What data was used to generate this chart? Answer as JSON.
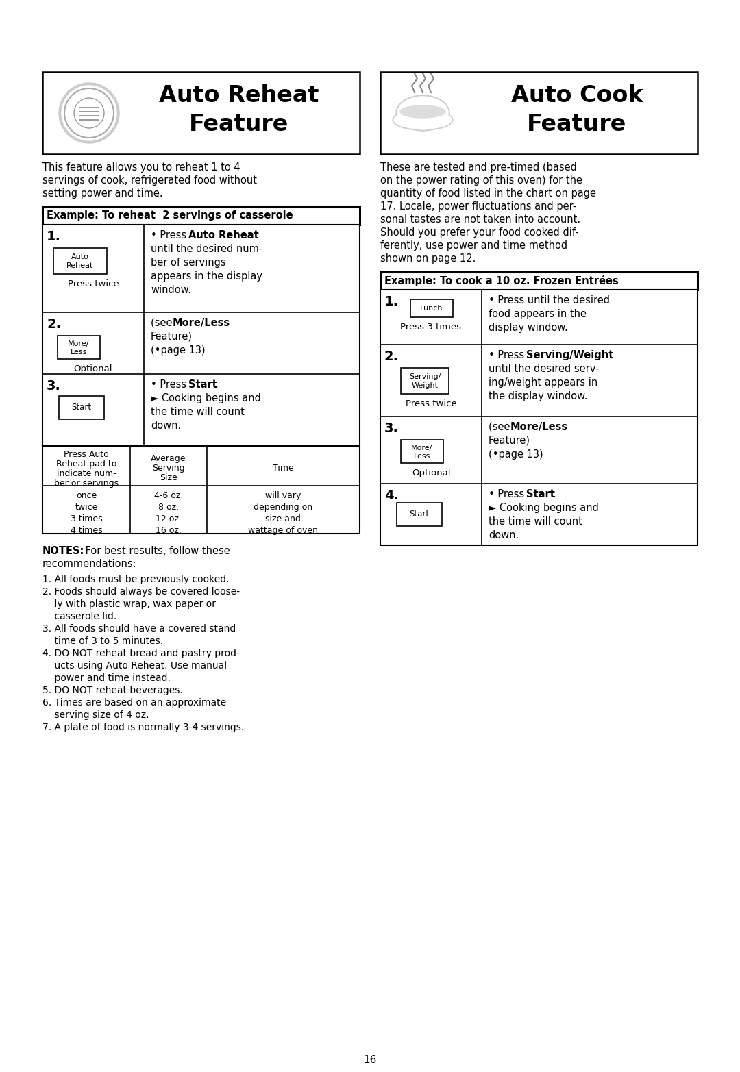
{
  "bg_color": "#ffffff",
  "page_number": "16",
  "left_title_line1": "Auto Reheat",
  "left_title_line2": "Feature",
  "right_title_line1": "Auto Cook",
  "right_title_line2": "Feature",
  "left_intro": [
    "This feature allows you to reheat 1 to 4",
    "servings of cook, refrigerated food without",
    "setting power and time."
  ],
  "left_example_label": "Example: To reheat  2 servings of casserole",
  "right_intro": [
    "These are tested and pre-timed (based",
    "on the power rating of this oven) for the",
    "quantity of food listed in the chart on page",
    "17. Locale, power fluctuations and per-",
    "sonal tastes are not taken into account.",
    "Should you prefer your food cooked dif-",
    "ferently, use power and time method",
    "shown on page 12."
  ],
  "right_example_label": "Example: To cook a 10 oz. Frozen Entrées",
  "notes_lines": [
    "1. All foods must be previously cooked.",
    "2. Foods should always be covered loose-",
    "    ly with plastic wrap, wax paper or",
    "    casserole lid.",
    "3. All foods should have a covered stand",
    "    time of 3 to 5 minutes.",
    "4. DO NOT reheat bread and pastry prod-",
    "    ucts using Auto Reheat. Use manual",
    "    power and time instead.",
    "5. DO NOT reheat beverages.",
    "6. Times are based on an approximate",
    "    serving size of 4 oz.",
    "7. A plate of food is normally 3-4 servings."
  ]
}
